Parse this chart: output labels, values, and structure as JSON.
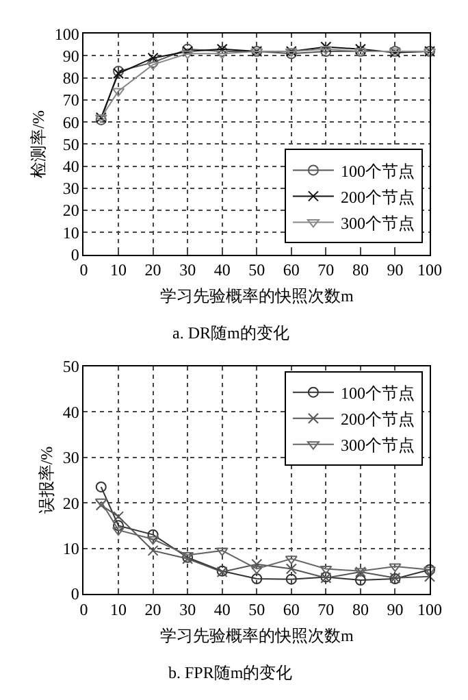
{
  "chart_data": [
    {
      "type": "line",
      "title": "a. DR随m的变化",
      "xlabel": "学习先验概率的快照次数m",
      "ylabel": "检测率/%",
      "x": [
        5,
        10,
        20,
        30,
        40,
        50,
        60,
        70,
        80,
        90,
        100
      ],
      "xlim": [
        0,
        100
      ],
      "xticks": [
        0,
        10,
        20,
        30,
        40,
        50,
        60,
        70,
        80,
        90,
        100
      ],
      "ylim": [
        0,
        100
      ],
      "yticks": [
        0,
        10,
        20,
        30,
        40,
        50,
        60,
        70,
        80,
        90,
        100
      ],
      "grid": true,
      "legend": "bottom right",
      "series": [
        {
          "name": "100个节点",
          "color": "#555555",
          "marker": "circle",
          "values": [
            61,
            83,
            87,
            93,
            92,
            92,
            91,
            92,
            92,
            92,
            92
          ]
        },
        {
          "name": "200个节点",
          "color": "#111111",
          "marker": "cross",
          "values": [
            62,
            82,
            89,
            92,
            93,
            92,
            92,
            94,
            93,
            91.5,
            92
          ]
        },
        {
          "name": "300个节点",
          "color": "#888888",
          "marker": "triangle",
          "values": [
            62,
            74,
            86,
            91,
            91,
            92,
            92,
            93,
            92,
            92,
            92
          ]
        }
      ]
    },
    {
      "type": "line",
      "title": "b. FPR随m的变化",
      "xlabel": "学习先验概率的快照次数m",
      "ylabel": "误报率/%",
      "x": [
        5,
        10,
        20,
        30,
        40,
        50,
        60,
        70,
        80,
        90,
        100
      ],
      "xlim": [
        0,
        100
      ],
      "xticks": [
        0,
        10,
        20,
        30,
        40,
        50,
        60,
        70,
        80,
        90,
        100
      ],
      "ylim": [
        0,
        50
      ],
      "yticks": [
        0,
        10,
        20,
        30,
        40,
        50
      ],
      "grid": true,
      "legend": "top right",
      "series": [
        {
          "name": "100个节点",
          "color": "#333333",
          "marker": "circle",
          "values": [
            23.5,
            15,
            13,
            8,
            5,
            3.3,
            3.2,
            3.7,
            3,
            3.3,
            5.3
          ]
        },
        {
          "name": "200个节点",
          "color": "#555555",
          "marker": "cross",
          "values": [
            19.5,
            17,
            9.5,
            7.7,
            4.8,
            6.5,
            5.5,
            3.5,
            4.8,
            3.5,
            3.8
          ]
        },
        {
          "name": "300个节点",
          "color": "#666666",
          "marker": "triangle",
          "values": [
            20.3,
            14,
            12,
            8.5,
            9.5,
            5.5,
            7.7,
            5.5,
            5,
            6,
            5.3
          ]
        }
      ]
    }
  ]
}
